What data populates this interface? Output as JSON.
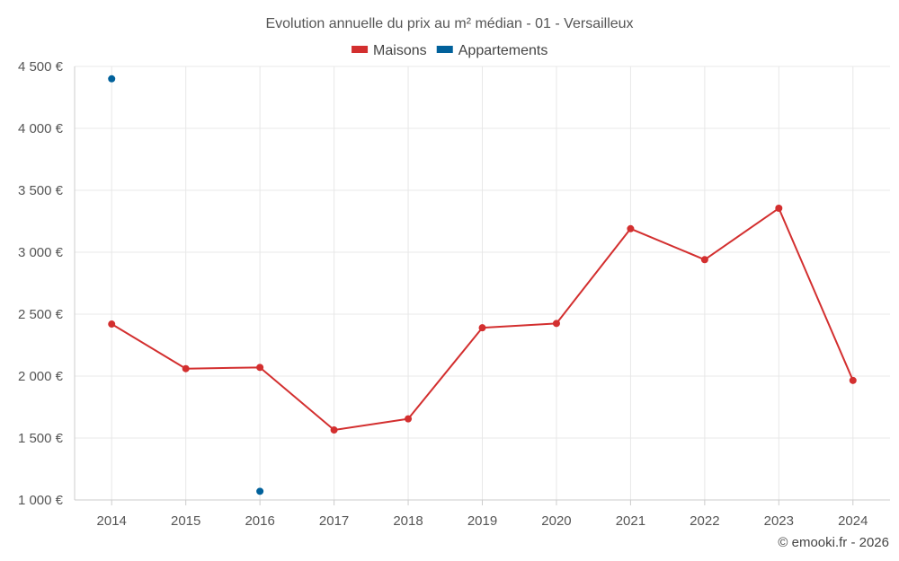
{
  "chart_data": {
    "type": "line",
    "title": "Evolution annuelle du prix au m² médian - 01 - Versailleux",
    "categories": [
      "2014",
      "2015",
      "2016",
      "2017",
      "2018",
      "2019",
      "2020",
      "2021",
      "2022",
      "2023",
      "2024"
    ],
    "series": [
      {
        "name": "Maisons",
        "color": "#d32f2f",
        "values": [
          2420,
          2060,
          2070,
          1565,
          1655,
          2390,
          2425,
          3190,
          2940,
          3355,
          1965
        ]
      },
      {
        "name": "Appartements",
        "color": "#01619b",
        "values": [
          4400,
          null,
          1070,
          null,
          null,
          null,
          null,
          null,
          null,
          null,
          null
        ]
      }
    ],
    "ylim": [
      1000,
      4500
    ],
    "yticks": [
      1000,
      1500,
      2000,
      2500,
      3000,
      3500,
      4000,
      4500
    ],
    "ytick_labels": [
      "1 000 €",
      "1 500 €",
      "2 000 €",
      "2 500 €",
      "3 000 €",
      "3 500 €",
      "4 000 €",
      "4 500 €"
    ],
    "xlabel": "",
    "ylabel": "",
    "legend_position": "top-center",
    "grid": true
  },
  "credit": "© emooki.fr - 2026"
}
